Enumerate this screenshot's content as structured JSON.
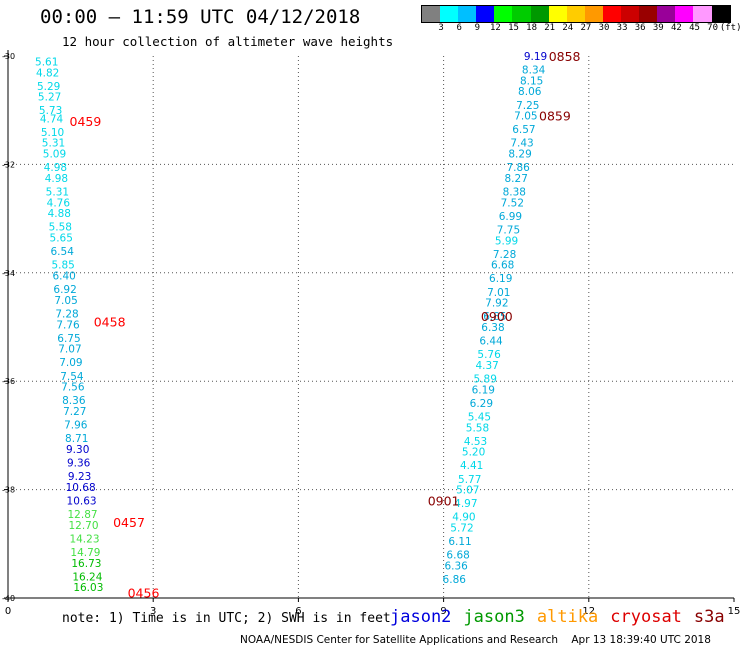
{
  "header": {
    "title": "00:00 – 11:59 UTC 04/12/2018",
    "subtitle": "12 hour collection of altimeter wave heights"
  },
  "colorbar": {
    "colors": [
      "#808080",
      "#00ffff",
      "#00bfff",
      "#0000ff",
      "#00ff00",
      "#00cc00",
      "#009900",
      "#ffff00",
      "#ffcc00",
      "#ff9900",
      "#ff0000",
      "#cc0000",
      "#990000",
      "#990099",
      "#ff00ff",
      "#ff99ff",
      "#000000"
    ],
    "labels": [
      "3",
      "6",
      "9",
      "12",
      "15",
      "18",
      "21",
      "24",
      "27",
      "30",
      "33",
      "36",
      "39",
      "42",
      "45",
      "70",
      "(ft)"
    ]
  },
  "chart_data": {
    "type": "scatter",
    "xlim": [
      0,
      15
    ],
    "ylim": [
      -40,
      -30
    ],
    "x_ticks": [
      "0",
      "3",
      "6",
      "9",
      "12",
      "15"
    ],
    "y_ticks": [
      "-30",
      "-32",
      "-34",
      "-36",
      "-38",
      "-40"
    ],
    "grid": true,
    "series": [
      {
        "name": "cryosat",
        "time_labels": [
          {
            "label": "0459",
            "lat": -31.2,
            "lon": 1.6
          },
          {
            "label": "0458",
            "lat": -34.9,
            "lon": 2.1
          },
          {
            "label": "0457",
            "lat": -38.6,
            "lon": 2.5
          },
          {
            "label": "0456",
            "lat": -39.9,
            "lon": 2.8
          }
        ],
        "points": [
          {
            "lat": -30.1,
            "lon": 0.8,
            "swh": 5.61
          },
          {
            "lat": -30.3,
            "lon": 0.82,
            "swh": 4.82
          },
          {
            "lat": -30.55,
            "lon": 0.84,
            "swh": 5.29
          },
          {
            "lat": -30.75,
            "lon": 0.86,
            "swh": 5.27
          },
          {
            "lat": -31.0,
            "lon": 0.88,
            "swh": 5.73
          },
          {
            "lat": -31.15,
            "lon": 0.9,
            "swh": 4.74
          },
          {
            "lat": -31.4,
            "lon": 0.92,
            "swh": 5.1
          },
          {
            "lat": -31.6,
            "lon": 0.94,
            "swh": 5.31
          },
          {
            "lat": -31.8,
            "lon": 0.96,
            "swh": 5.09
          },
          {
            "lat": -32.05,
            "lon": 0.98,
            "swh": 4.98
          },
          {
            "lat": -32.25,
            "lon": 1.0,
            "swh": 4.98
          },
          {
            "lat": -32.5,
            "lon": 1.02,
            "swh": 5.31
          },
          {
            "lat": -32.7,
            "lon": 1.04,
            "swh": 4.76
          },
          {
            "lat": -32.9,
            "lon": 1.06,
            "swh": 4.88
          },
          {
            "lat": -33.15,
            "lon": 1.08,
            "swh": 5.58
          },
          {
            "lat": -33.35,
            "lon": 1.1,
            "swh": 5.65
          },
          {
            "lat": -33.6,
            "lon": 1.12,
            "swh": 6.54
          },
          {
            "lat": -33.85,
            "lon": 1.14,
            "swh": 5.85
          },
          {
            "lat": -34.05,
            "lon": 1.16,
            "swh": 6.4
          },
          {
            "lat": -34.3,
            "lon": 1.18,
            "swh": 6.92
          },
          {
            "lat": -34.5,
            "lon": 1.2,
            "swh": 7.05
          },
          {
            "lat": -34.75,
            "lon": 1.22,
            "swh": 7.28
          },
          {
            "lat": -34.95,
            "lon": 1.24,
            "swh": 7.76
          },
          {
            "lat": -35.2,
            "lon": 1.26,
            "swh": 6.75
          },
          {
            "lat": -35.4,
            "lon": 1.28,
            "swh": 7.07
          },
          {
            "lat": -35.65,
            "lon": 1.3,
            "swh": 7.09
          },
          {
            "lat": -35.9,
            "lon": 1.32,
            "swh": 7.54
          },
          {
            "lat": -36.1,
            "lon": 1.34,
            "swh": 7.56
          },
          {
            "lat": -36.35,
            "lon": 1.36,
            "swh": 8.36
          },
          {
            "lat": -36.55,
            "lon": 1.38,
            "swh": 7.27
          },
          {
            "lat": -36.8,
            "lon": 1.4,
            "swh": 7.96
          },
          {
            "lat": -37.05,
            "lon": 1.42,
            "swh": 8.71
          },
          {
            "lat": -37.25,
            "lon": 1.44,
            "swh": 9.3
          },
          {
            "lat": -37.5,
            "lon": 1.46,
            "swh": 9.36
          },
          {
            "lat": -37.75,
            "lon": 1.48,
            "swh": 9.23
          },
          {
            "lat": -37.95,
            "lon": 1.5,
            "swh": 10.68
          },
          {
            "lat": -38.2,
            "lon": 1.52,
            "swh": 10.63
          },
          {
            "lat": -38.45,
            "lon": 1.54,
            "swh": 12.87
          },
          {
            "lat": -38.65,
            "lon": 1.56,
            "swh": 12.7
          },
          {
            "lat": -38.9,
            "lon": 1.58,
            "swh": 14.23
          },
          {
            "lat": -39.15,
            "lon": 1.6,
            "swh": 14.79
          },
          {
            "lat": -39.35,
            "lon": 1.62,
            "swh": 16.73
          },
          {
            "lat": -39.6,
            "lon": 1.64,
            "swh": 16.24
          },
          {
            "lat": -39.8,
            "lon": 1.66,
            "swh": 16.03
          }
        ]
      },
      {
        "name": "s3a",
        "time_labels": [
          {
            "label": "0858",
            "lat": -30.0,
            "lon": 11.5
          },
          {
            "label": "0859",
            "lat": -31.1,
            "lon": 11.3
          },
          {
            "label": "0900",
            "lat": -34.8,
            "lon": 10.1
          },
          {
            "label": "0901",
            "lat": -38.2,
            "lon": 9.0
          }
        ],
        "points": [
          {
            "lat": -30.0,
            "lon": 10.9,
            "swh": 9.19
          },
          {
            "lat": -30.25,
            "lon": 10.86,
            "swh": 8.34
          },
          {
            "lat": -30.45,
            "lon": 10.82,
            "swh": 8.15
          },
          {
            "lat": -30.65,
            "lon": 10.78,
            "swh": 8.06
          },
          {
            "lat": -30.9,
            "lon": 10.74,
            "swh": 7.25
          },
          {
            "lat": -31.1,
            "lon": 10.7,
            "swh": 7.05
          },
          {
            "lat": -31.35,
            "lon": 10.66,
            "swh": 6.57
          },
          {
            "lat": -31.6,
            "lon": 10.62,
            "swh": 7.43
          },
          {
            "lat": -31.8,
            "lon": 10.58,
            "swh": 8.29
          },
          {
            "lat": -32.05,
            "lon": 10.54,
            "swh": 7.86
          },
          {
            "lat": -32.25,
            "lon": 10.5,
            "swh": 8.27
          },
          {
            "lat": -32.5,
            "lon": 10.46,
            "swh": 8.38
          },
          {
            "lat": -32.7,
            "lon": 10.42,
            "swh": 7.52
          },
          {
            "lat": -32.95,
            "lon": 10.38,
            "swh": 6.99
          },
          {
            "lat": -33.2,
            "lon": 10.34,
            "swh": 7.75
          },
          {
            "lat": -33.4,
            "lon": 10.3,
            "swh": 5.99
          },
          {
            "lat": -33.65,
            "lon": 10.26,
            "swh": 7.28
          },
          {
            "lat": -33.85,
            "lon": 10.22,
            "swh": 6.68
          },
          {
            "lat": -34.1,
            "lon": 10.18,
            "swh": 6.19
          },
          {
            "lat": -34.35,
            "lon": 10.14,
            "swh": 7.01
          },
          {
            "lat": -34.55,
            "lon": 10.1,
            "swh": 7.92
          },
          {
            "lat": -34.8,
            "lon": 10.06,
            "swh": 6.85
          },
          {
            "lat": -35.0,
            "lon": 10.02,
            "swh": 6.38
          },
          {
            "lat": -35.25,
            "lon": 9.98,
            "swh": 6.44
          },
          {
            "lat": -35.5,
            "lon": 9.94,
            "swh": 5.76
          },
          {
            "lat": -35.7,
            "lon": 9.9,
            "swh": 4.37
          },
          {
            "lat": -35.95,
            "lon": 9.86,
            "swh": 5.89
          },
          {
            "lat": -36.15,
            "lon": 9.82,
            "swh": 6.19
          },
          {
            "lat": -36.4,
            "lon": 9.78,
            "swh": 6.29
          },
          {
            "lat": -36.65,
            "lon": 9.74,
            "swh": 5.45
          },
          {
            "lat": -36.85,
            "lon": 9.7,
            "swh": 5.58
          },
          {
            "lat": -37.1,
            "lon": 9.66,
            "swh": 4.53
          },
          {
            "lat": -37.3,
            "lon": 9.62,
            "swh": 5.2
          },
          {
            "lat": -37.55,
            "lon": 9.58,
            "swh": 4.41
          },
          {
            "lat": -37.8,
            "lon": 9.54,
            "swh": 5.77
          },
          {
            "lat": -38.0,
            "lon": 9.5,
            "swh": 5.07
          },
          {
            "lat": -38.25,
            "lon": 9.46,
            "swh": 4.97
          },
          {
            "lat": -38.5,
            "lon": 9.42,
            "swh": 4.9
          },
          {
            "lat": -38.7,
            "lon": 9.38,
            "swh": 5.72
          },
          {
            "lat": -38.95,
            "lon": 9.34,
            "swh": 6.11
          },
          {
            "lat": -39.2,
            "lon": 9.3,
            "swh": 6.68
          },
          {
            "lat": -39.4,
            "lon": 9.26,
            "swh": 6.36
          },
          {
            "lat": -39.65,
            "lon": 9.22,
            "swh": 6.86
          }
        ]
      }
    ]
  },
  "point_colors_by_range": [
    {
      "max": 6.0,
      "color": "#00d8e8"
    },
    {
      "max": 9.0,
      "color": "#00a8d8"
    },
    {
      "max": 12.0,
      "color": "#0000cc"
    },
    {
      "max": 15.0,
      "color": "#44e044"
    },
    {
      "max": 18.0,
      "color": "#00bb00"
    }
  ],
  "label_colors": {
    "cryosat": "#ff0000",
    "s3a": "#880000"
  },
  "footer": {
    "note": "note: 1) Time is in UTC; 2) SWH is in feet",
    "legend": [
      {
        "name": "jason2",
        "color": "#0000dd"
      },
      {
        "name": "jason3",
        "color": "#009900"
      },
      {
        "name": "altika",
        "color": "#ff9900"
      },
      {
        "name": "cryosat",
        "color": "#dd0000"
      },
      {
        "name": "s3a",
        "color": "#880000"
      }
    ],
    "credit": "NOAA/NESDIS Center for Satellite Applications and Research    Apr 13 18:39:40 UTC 2018"
  }
}
